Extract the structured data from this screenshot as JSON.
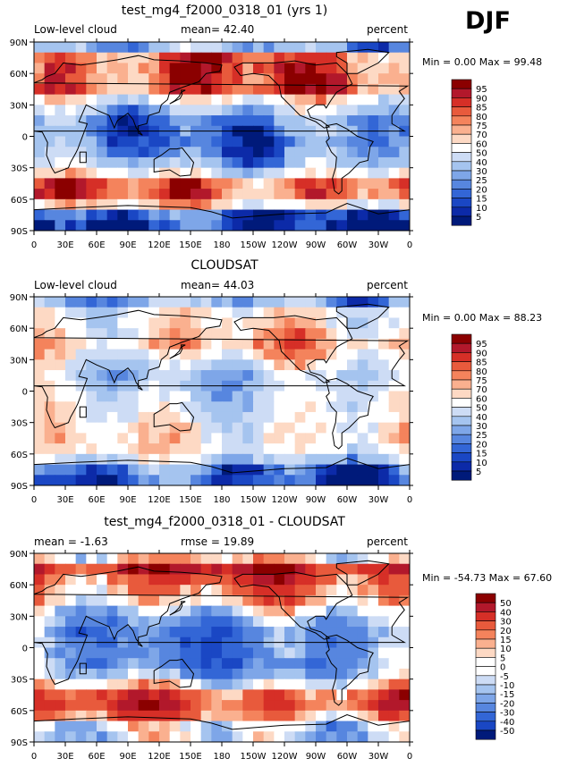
{
  "season": "DJF",
  "lon_ticks": [
    "0",
    "30E",
    "60E",
    "90E",
    "120E",
    "150E",
    "180",
    "150W",
    "120W",
    "90W",
    "60W",
    "30W",
    "0"
  ],
  "lat_ticks": [
    "90N",
    "60N",
    "30N",
    "0",
    "30S",
    "60S",
    "90S"
  ],
  "panels": [
    {
      "title": "test_mg4_f2000_0318_01 (yrs 1)",
      "left_label": "Low-level cloud",
      "center_label": "mean=  42.40",
      "right_label": "percent",
      "minmax": "Min =    0.00 Max =  99.48",
      "legend_levels": [
        "95",
        "90",
        "85",
        "80",
        "75",
        "70",
        "60",
        "50",
        "40",
        "30",
        "25",
        "20",
        "15",
        "10",
        "5"
      ],
      "legend_colors": [
        "#8b0000",
        "#b2182b",
        "#d62f27",
        "#e85a3c",
        "#f4835c",
        "#fab08f",
        "#fdd9c4",
        "#ffffff",
        "#cddcf5",
        "#a5c4ef",
        "#7ea6e8",
        "#5786df",
        "#3366d6",
        "#1a47c4",
        "#0c2aa8",
        "#001a7a"
      ],
      "field": {
        "type": "cloud",
        "cloud_lats": [
          90,
          75,
          60,
          45,
          30,
          15,
          0,
          -15,
          -30,
          -45,
          -60,
          -75,
          -90
        ],
        "cloud_zonal": [
          10,
          80,
          85,
          82,
          45,
          25,
          20,
          25,
          40,
          80,
          85,
          15,
          5
        ]
      }
    },
    {
      "title": "CLOUDSAT",
      "left_label": "Low-level cloud",
      "center_label": "mean=  44.03",
      "right_label": "percent",
      "minmax": "Min =    0.00 Max =  88.23",
      "legend_levels": [
        "95",
        "90",
        "85",
        "80",
        "75",
        "70",
        "60",
        "50",
        "40",
        "30",
        "25",
        "20",
        "15",
        "10",
        "5"
      ],
      "legend_colors": [
        "#8b0000",
        "#b2182b",
        "#d62f27",
        "#e85a3c",
        "#f4835c",
        "#fab08f",
        "#fdd9c4",
        "#ffffff",
        "#cddcf5",
        "#a5c4ef",
        "#7ea6e8",
        "#5786df",
        "#3366d6",
        "#1a47c4",
        "#0c2aa8",
        "#001a7a"
      ],
      "field": {
        "type": "cloud",
        "cloud_lats": [
          90,
          75,
          60,
          45,
          30,
          15,
          0,
          -15,
          -30,
          -45,
          -60,
          -75,
          -90
        ],
        "cloud_zonal": [
          20,
          55,
          60,
          70,
          55,
          40,
          45,
          50,
          55,
          60,
          55,
          20,
          10
        ]
      }
    },
    {
      "title": "test_mg4_f2000_0318_01 - CLOUDSAT",
      "left_label": "mean =  -1.63",
      "center_label": "rmse =  19.89",
      "right_label": "percent",
      "minmax": "Min = -54.73 Max =  67.60",
      "legend_levels": [
        "50",
        "40",
        "30",
        "20",
        "15",
        "10",
        "5",
        "0",
        "-5",
        "-10",
        "-15",
        "-20",
        "-30",
        "-40",
        "-50"
      ],
      "legend_colors": [
        "#8b0000",
        "#b2182b",
        "#d62f27",
        "#e85a3c",
        "#f4835c",
        "#fab08f",
        "#fdd9c4",
        "#ffffff",
        "#ffffff",
        "#cddcf5",
        "#a5c4ef",
        "#7ea6e8",
        "#5786df",
        "#3366d6",
        "#1a47c4",
        "#001a7a"
      ],
      "field": {
        "type": "diff",
        "cloud_lats": [
          90,
          75,
          60,
          45,
          30,
          15,
          0,
          -15,
          -30,
          -45,
          -60,
          -75,
          -90
        ],
        "cloud_zonal": [
          -10,
          40,
          20,
          10,
          -15,
          -25,
          -25,
          -25,
          -10,
          25,
          30,
          -5,
          -5
        ]
      }
    }
  ]
}
